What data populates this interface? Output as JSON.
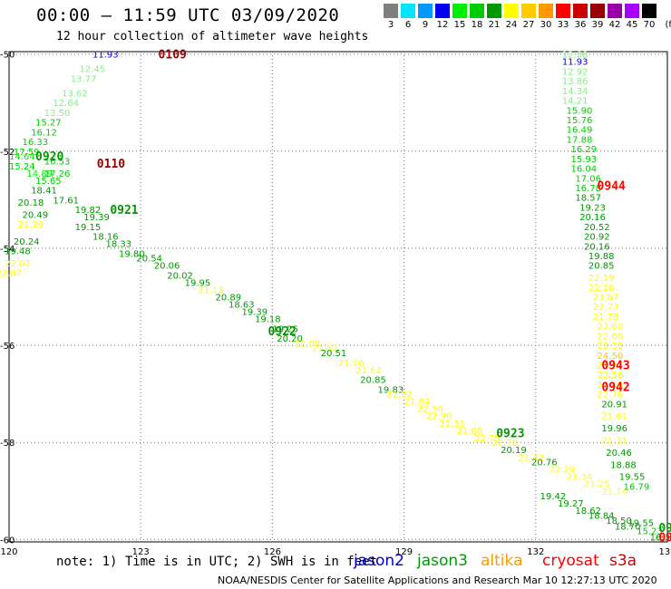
{
  "title": "00:00 — 11:59 UTC 03/09/2020",
  "subtitle": "12 hour collection of altimeter wave heights",
  "legend": {
    "unit": "(ft)",
    "bins": [
      {
        "label": "3",
        "color": "#7f7f7f"
      },
      {
        "label": "6",
        "color": "#00e5ff"
      },
      {
        "label": "9",
        "color": "#0099ff"
      },
      {
        "label": "12",
        "color": "#0000ee"
      },
      {
        "label": "15",
        "color": "#00ee00"
      },
      {
        "label": "18",
        "color": "#00cc00"
      },
      {
        "label": "21",
        "color": "#009900"
      },
      {
        "label": "24",
        "color": "#ffff00"
      },
      {
        "label": "27",
        "color": "#ffcc00"
      },
      {
        "label": "30",
        "color": "#ff9900"
      },
      {
        "label": "33",
        "color": "#ff0000"
      },
      {
        "label": "36",
        "color": "#cc0000"
      },
      {
        "label": "39",
        "color": "#990000"
      },
      {
        "label": "42",
        "color": "#9900aa"
      },
      {
        "label": "45",
        "color": "#aa00ff"
      },
      {
        "label": "70",
        "color": "#000000"
      }
    ]
  },
  "axes": {
    "lat_ticks": [
      "-50",
      "-52",
      "-54",
      "-56",
      "-58",
      "-60"
    ],
    "lon_ticks": [
      "120",
      "123",
      "126",
      "129",
      "132",
      "135"
    ]
  },
  "note": "note: 1) Time is in UTC; 2) SWH is in feet",
  "satellites": [
    {
      "name": "jason2",
      "color": "#0000cc"
    },
    {
      "name": "jason3",
      "color": "#009900"
    },
    {
      "name": "altika",
      "color": "#ff9900"
    },
    {
      "name": "cryosat",
      "color": "#ff0000"
    },
    {
      "name": "s3a",
      "color": "#cc0000"
    }
  ],
  "credit": "NOAA/NESDIS Center for Satellite Applications and Research   Mar 10 12:27:13 UTC 2020",
  "chart_data": {
    "type": "scatter",
    "title": "00:00 — 11:59 UTC 03/09/2020",
    "subtitle": "12 hour collection of altimeter wave heights",
    "xlim": [
      120,
      135
    ],
    "ylim": [
      -60.05,
      -49.95
    ],
    "grid": true,
    "time_labels": [
      {
        "lon": 123.4,
        "lat": -50.0,
        "text": "0109",
        "color": "#990000"
      },
      {
        "lon": 120.6,
        "lat": -52.1,
        "text": "0920",
        "color": "#009900"
      },
      {
        "lon": 122.0,
        "lat": -52.25,
        "text": "0110",
        "color": "#990000"
      },
      {
        "lon": 122.3,
        "lat": -53.2,
        "text": "0921",
        "color": "#009900"
      },
      {
        "lon": 125.9,
        "lat": -55.7,
        "text": "0922",
        "color": "#009900"
      },
      {
        "lon": 131.1,
        "lat": -57.8,
        "text": "0923",
        "color": "#009900"
      },
      {
        "lon": 134.8,
        "lat": -59.75,
        "text": "0924",
        "color": "#009900"
      },
      {
        "lon": 134.8,
        "lat": -59.95,
        "text": "0943",
        "color": "#ff0000"
      },
      {
        "lon": 133.4,
        "lat": -52.7,
        "text": "0944",
        "color": "#ff0000"
      },
      {
        "lon": 133.5,
        "lat": -56.4,
        "text": "0943",
        "color": "#ff0000"
      },
      {
        "lon": 133.5,
        "lat": -56.85,
        "text": "0942",
        "color": "#ff0000"
      }
    ],
    "points": [
      {
        "lon": 121.9,
        "lat": -50.0,
        "v": 11.93,
        "c": "#0000ee"
      },
      {
        "lon": 121.6,
        "lat": -50.3,
        "v": 12.45,
        "c": "#88ee88"
      },
      {
        "lon": 121.4,
        "lat": -50.5,
        "v": 13.77,
        "c": "#88ee88"
      },
      {
        "lon": 121.2,
        "lat": -50.8,
        "v": 13.62,
        "c": "#88ee88"
      },
      {
        "lon": 121.0,
        "lat": -51.0,
        "v": 12.64,
        "c": "#88ee88"
      },
      {
        "lon": 120.8,
        "lat": -51.2,
        "v": 13.5,
        "c": "#88ee88"
      },
      {
        "lon": 120.6,
        "lat": -51.4,
        "v": 15.27,
        "c": "#00cc00"
      },
      {
        "lon": 120.5,
        "lat": -51.6,
        "v": 16.12,
        "c": "#00cc00"
      },
      {
        "lon": 120.3,
        "lat": -51.8,
        "v": 16.33,
        "c": "#00cc00"
      },
      {
        "lon": 120.1,
        "lat": -52.0,
        "v": 17.59,
        "c": "#00cc00"
      },
      {
        "lon": 120.0,
        "lat": -52.1,
        "v": 14.64,
        "c": "#00ee00"
      },
      {
        "lon": 120.0,
        "lat": -52.3,
        "v": 15.24,
        "c": "#00cc00"
      },
      {
        "lon": 120.4,
        "lat": -52.45,
        "v": 14.89,
        "c": "#00ee00"
      },
      {
        "lon": 120.8,
        "lat": -52.2,
        "v": 16.53,
        "c": "#00cc00"
      },
      {
        "lon": 120.8,
        "lat": -52.45,
        "v": 17.26,
        "c": "#00cc00"
      },
      {
        "lon": 120.6,
        "lat": -52.6,
        "v": 15.65,
        "c": "#00cc00"
      },
      {
        "lon": 120.5,
        "lat": -52.8,
        "v": 18.41,
        "c": "#009900"
      },
      {
        "lon": 121.0,
        "lat": -53.0,
        "v": 17.61,
        "c": "#009900"
      },
      {
        "lon": 120.2,
        "lat": -53.05,
        "v": 20.18,
        "c": "#009900"
      },
      {
        "lon": 121.5,
        "lat": -53.2,
        "v": 19.82,
        "c": "#009900"
      },
      {
        "lon": 120.3,
        "lat": -53.3,
        "v": 20.49,
        "c": "#009900"
      },
      {
        "lon": 121.7,
        "lat": -53.35,
        "v": 19.39,
        "c": "#009900"
      },
      {
        "lon": 120.2,
        "lat": -53.5,
        "v": 21.29,
        "c": "#ffff00"
      },
      {
        "lon": 121.5,
        "lat": -53.55,
        "v": 19.15,
        "c": "#009900"
      },
      {
        "lon": 121.9,
        "lat": -53.75,
        "v": 18.16,
        "c": "#009900"
      },
      {
        "lon": 120.1,
        "lat": -53.85,
        "v": 20.24,
        "c": "#009900"
      },
      {
        "lon": 122.2,
        "lat": -53.9,
        "v": 18.33,
        "c": "#009900"
      },
      {
        "lon": 119.9,
        "lat": -54.05,
        "v": 19.48,
        "c": "#009900"
      },
      {
        "lon": 122.5,
        "lat": -54.1,
        "v": 19.8,
        "c": "#009900"
      },
      {
        "lon": 122.9,
        "lat": -54.2,
        "v": 20.54,
        "c": "#009900"
      },
      {
        "lon": 119.9,
        "lat": -54.3,
        "v": 22.07,
        "c": "#ffff00"
      },
      {
        "lon": 123.3,
        "lat": -54.35,
        "v": 20.06,
        "c": "#009900"
      },
      {
        "lon": 119.7,
        "lat": -54.5,
        "v": 22.67,
        "c": "#ffff00"
      },
      {
        "lon": 123.6,
        "lat": -54.55,
        "v": 20.02,
        "c": "#009900"
      },
      {
        "lon": 124.0,
        "lat": -54.7,
        "v": 19.95,
        "c": "#009900"
      },
      {
        "lon": 124.3,
        "lat": -54.85,
        "v": 21.13,
        "c": "#ffff00"
      },
      {
        "lon": 124.7,
        "lat": -55.0,
        "v": 20.89,
        "c": "#009900"
      },
      {
        "lon": 125.0,
        "lat": -55.15,
        "v": 18.63,
        "c": "#009900"
      },
      {
        "lon": 125.3,
        "lat": -55.3,
        "v": 19.39,
        "c": "#009900"
      },
      {
        "lon": 125.6,
        "lat": -55.45,
        "v": 19.18,
        "c": "#009900"
      },
      {
        "lon": 126.0,
        "lat": -55.65,
        "v": 19.25,
        "c": "#009900"
      },
      {
        "lon": 126.1,
        "lat": -55.85,
        "v": 20.2,
        "c": "#009900"
      },
      {
        "lon": 126.5,
        "lat": -55.95,
        "v": 22.0,
        "c": "#ffff00"
      },
      {
        "lon": 126.9,
        "lat": -56.05,
        "v": 21.52,
        "c": "#ffff00"
      },
      {
        "lon": 127.1,
        "lat": -56.15,
        "v": 20.51,
        "c": "#009900"
      },
      {
        "lon": 127.5,
        "lat": -56.35,
        "v": 21.06,
        "c": "#ffff00"
      },
      {
        "lon": 127.9,
        "lat": -56.5,
        "v": 21.62,
        "c": "#ffff00"
      },
      {
        "lon": 128.0,
        "lat": -56.7,
        "v": 20.85,
        "c": "#009900"
      },
      {
        "lon": 128.4,
        "lat": -56.9,
        "v": 19.83,
        "c": "#009900"
      },
      {
        "lon": 128.6,
        "lat": -57.0,
        "v": 21.92,
        "c": "#ffff00"
      },
      {
        "lon": 129.0,
        "lat": -57.15,
        "v": 21.84,
        "c": "#ffff00"
      },
      {
        "lon": 129.3,
        "lat": -57.3,
        "v": 22.5,
        "c": "#ffff00"
      },
      {
        "lon": 129.5,
        "lat": -57.45,
        "v": 22.9,
        "c": "#ffff00"
      },
      {
        "lon": 129.8,
        "lat": -57.6,
        "v": 21.31,
        "c": "#ffff00"
      },
      {
        "lon": 130.2,
        "lat": -57.75,
        "v": 21.6,
        "c": "#ffff00"
      },
      {
        "lon": 130.6,
        "lat": -57.9,
        "v": 22.75,
        "c": "#ffff00"
      },
      {
        "lon": 131.0,
        "lat": -58.0,
        "v": 22.7,
        "c": "#ffff00"
      },
      {
        "lon": 131.2,
        "lat": -58.15,
        "v": 20.19,
        "c": "#009900"
      },
      {
        "lon": 131.6,
        "lat": -58.3,
        "v": 21.42,
        "c": "#ffff00"
      },
      {
        "lon": 131.9,
        "lat": -58.4,
        "v": 20.76,
        "c": "#009900"
      },
      {
        "lon": 132.3,
        "lat": -58.55,
        "v": 22.29,
        "c": "#ffff00"
      },
      {
        "lon": 132.7,
        "lat": -58.7,
        "v": 21.34,
        "c": "#ffff00"
      },
      {
        "lon": 133.1,
        "lat": -58.85,
        "v": 21.25,
        "c": "#ffff00"
      },
      {
        "lon": 133.5,
        "lat": -59.0,
        "v": 21.74,
        "c": "#ffff00"
      },
      {
        "lon": 132.1,
        "lat": -59.1,
        "v": 19.42,
        "c": "#009900"
      },
      {
        "lon": 132.5,
        "lat": -59.25,
        "v": 19.27,
        "c": "#009900"
      },
      {
        "lon": 132.9,
        "lat": -59.4,
        "v": 18.62,
        "c": "#009900"
      },
      {
        "lon": 133.2,
        "lat": -59.5,
        "v": 18.84,
        "c": "#009900"
      },
      {
        "lon": 133.6,
        "lat": -59.6,
        "v": 18.5,
        "c": "#009900"
      },
      {
        "lon": 133.8,
        "lat": -59.72,
        "v": 18.7,
        "c": "#009900"
      },
      {
        "lon": 134.1,
        "lat": -59.65,
        "v": 19.55,
        "c": "#009900"
      },
      {
        "lon": 134.3,
        "lat": -59.82,
        "v": 15.23,
        "c": "#00cc00"
      },
      {
        "lon": 134.6,
        "lat": -59.95,
        "v": 16.33,
        "c": "#009900"
      },
      {
        "lon": 132.6,
        "lat": -50.0,
        "v": 12.88,
        "c": "#88ee88"
      },
      {
        "lon": 132.6,
        "lat": -50.15,
        "v": 11.93,
        "c": "#0000ee"
      },
      {
        "lon": 132.6,
        "lat": -50.35,
        "v": 12.92,
        "c": "#88ee88"
      },
      {
        "lon": 132.6,
        "lat": -50.55,
        "v": 13.86,
        "c": "#88ee88"
      },
      {
        "lon": 132.6,
        "lat": -50.75,
        "v": 14.34,
        "c": "#88ee88"
      },
      {
        "lon": 132.6,
        "lat": -50.95,
        "v": 14.21,
        "c": "#88ee88"
      },
      {
        "lon": 132.7,
        "lat": -51.15,
        "v": 15.9,
        "c": "#00cc00"
      },
      {
        "lon": 132.7,
        "lat": -51.35,
        "v": 15.76,
        "c": "#00cc00"
      },
      {
        "lon": 132.7,
        "lat": -51.55,
        "v": 16.49,
        "c": "#00cc00"
      },
      {
        "lon": 132.7,
        "lat": -51.75,
        "v": 17.88,
        "c": "#00cc00"
      },
      {
        "lon": 132.8,
        "lat": -51.95,
        "v": 16.29,
        "c": "#00cc00"
      },
      {
        "lon": 132.8,
        "lat": -52.15,
        "v": 15.93,
        "c": "#00cc00"
      },
      {
        "lon": 132.8,
        "lat": -52.35,
        "v": 16.04,
        "c": "#00cc00"
      },
      {
        "lon": 132.9,
        "lat": -52.55,
        "v": 17.06,
        "c": "#00cc00"
      },
      {
        "lon": 132.9,
        "lat": -52.75,
        "v": 16.78,
        "c": "#00cc00"
      },
      {
        "lon": 132.9,
        "lat": -52.95,
        "v": 18.57,
        "c": "#009900"
      },
      {
        "lon": 133.0,
        "lat": -53.15,
        "v": 19.23,
        "c": "#009900"
      },
      {
        "lon": 133.0,
        "lat": -53.35,
        "v": 20.16,
        "c": "#009900"
      },
      {
        "lon": 133.1,
        "lat": -53.55,
        "v": 20.52,
        "c": "#009900"
      },
      {
        "lon": 133.1,
        "lat": -53.75,
        "v": 20.92,
        "c": "#009900"
      },
      {
        "lon": 133.1,
        "lat": -53.95,
        "v": 20.16,
        "c": "#009900"
      },
      {
        "lon": 133.2,
        "lat": -54.15,
        "v": 19.88,
        "c": "#009900"
      },
      {
        "lon": 133.2,
        "lat": -54.35,
        "v": 20.85,
        "c": "#009900"
      },
      {
        "lon": 133.2,
        "lat": -54.6,
        "v": 22.19,
        "c": "#ffff00"
      },
      {
        "lon": 133.2,
        "lat": -54.8,
        "v": 22.18,
        "c": "#ffff00"
      },
      {
        "lon": 133.3,
        "lat": -55.0,
        "v": 23.87,
        "c": "#ffff00"
      },
      {
        "lon": 133.3,
        "lat": -55.2,
        "v": 22.73,
        "c": "#ffff00"
      },
      {
        "lon": 133.3,
        "lat": -55.4,
        "v": 21.78,
        "c": "#ffff00"
      },
      {
        "lon": 133.4,
        "lat": -55.6,
        "v": 22.6,
        "c": "#ffff00"
      },
      {
        "lon": 133.4,
        "lat": -55.8,
        "v": 22.0,
        "c": "#ffff00"
      },
      {
        "lon": 133.4,
        "lat": -56.0,
        "v": 23.33,
        "c": "#ffff00"
      },
      {
        "lon": 133.4,
        "lat": -56.2,
        "v": 24.5,
        "c": "#ffcc00"
      },
      {
        "lon": 133.4,
        "lat": -56.4,
        "v": 23.27,
        "c": "#ffff00"
      },
      {
        "lon": 133.4,
        "lat": -56.6,
        "v": 23.56,
        "c": "#ffff00"
      },
      {
        "lon": 133.4,
        "lat": -56.8,
        "v": 22.58,
        "c": "#ffff00"
      },
      {
        "lon": 133.4,
        "lat": -57.0,
        "v": 22.76,
        "c": "#ffff00"
      },
      {
        "lon": 133.5,
        "lat": -57.2,
        "v": 20.91,
        "c": "#009900"
      },
      {
        "lon": 133.5,
        "lat": -57.45,
        "v": 21.61,
        "c": "#ffff00"
      },
      {
        "lon": 133.5,
        "lat": -57.7,
        "v": 19.96,
        "c": "#009900"
      },
      {
        "lon": 133.5,
        "lat": -57.95,
        "v": 21.31,
        "c": "#ffff00"
      },
      {
        "lon": 133.6,
        "lat": -58.2,
        "v": 20.46,
        "c": "#009900"
      },
      {
        "lon": 133.7,
        "lat": -58.45,
        "v": 18.88,
        "c": "#009900"
      },
      {
        "lon": 133.9,
        "lat": -58.7,
        "v": 19.55,
        "c": "#009900"
      },
      {
        "lon": 134.0,
        "lat": -58.9,
        "v": 16.79,
        "c": "#00cc00"
      }
    ]
  }
}
